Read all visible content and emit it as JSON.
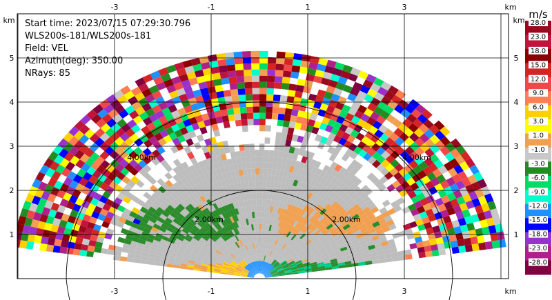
{
  "chart_data": {
    "type": "heatmap",
    "description_lines": [
      "Start time: 2023/07/15 07:29:30.796",
      "WLS200s-181/WLS200s-181",
      "Field: VEL",
      "Azimuth(deg): 350.00",
      "NRays: 85"
    ],
    "x_unit": "km",
    "y_unit": "km",
    "x_ticks": [
      "-3",
      "-1",
      "1",
      "3"
    ],
    "y_ticks": [
      "1",
      "2",
      "3",
      "4",
      "5"
    ],
    "xlim": [
      -5.8,
      5.8
    ],
    "ylim": [
      0,
      6
    ],
    "range_ring_labels": [
      "2.00km",
      "2.00km",
      "4.00km",
      "4.00km"
    ],
    "range_rings_km": [
      2,
      4
    ],
    "colorbar": {
      "title": "m/s",
      "labels": [
        "28.0",
        "23.0",
        "18.0",
        "15.0",
        "12.0",
        "9.0",
        "6.0",
        "3.0",
        "1.0",
        "-1.0",
        "-3.0",
        "-6.0",
        "-9.0",
        "-12.0",
        "-15.0",
        "-18.0",
        "-23.0",
        "-28.0"
      ],
      "colors": [
        "#9a0a1e",
        "#c0143c",
        "#8b0000",
        "#d42424",
        "#f04848",
        "#ff7f50",
        "#ffd000",
        "#ffff00",
        "#f0a050",
        "#c8c8c8",
        "#228b22",
        "#00dd66",
        "#00ffcc",
        "#1e90ff",
        "#0000ff",
        "#9932cc",
        "#b0208c",
        "#800040"
      ]
    },
    "field_colors": {
      "gray": "#bdbdbd",
      "orange": "#f0a050",
      "green": "#2a8c2a"
    }
  }
}
